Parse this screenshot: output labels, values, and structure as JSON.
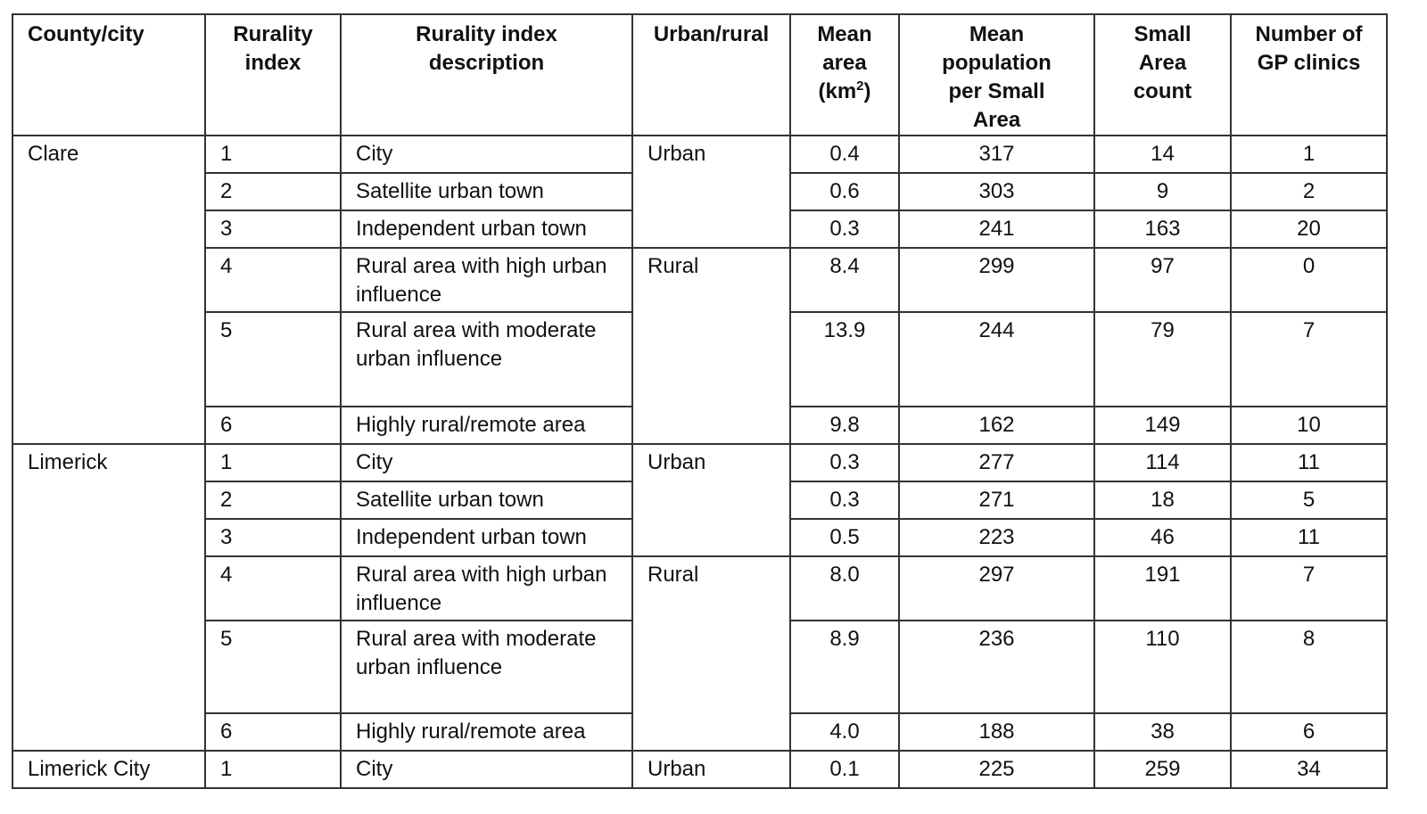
{
  "headers": {
    "county": "County/city",
    "index": "Rurality index",
    "description": "Rurality index description",
    "urban_rural": "Urban/rural",
    "mean_area": "Mean area (km",
    "mean_area_sup": "2",
    "mean_area_end": ")",
    "mean_population": "Mean population per Small Area",
    "small_area_count": "Small Area count",
    "gp_clinics": "Number of GP clinics"
  },
  "groups": [
    {
      "county": "Clare",
      "rows": [
        {
          "index": "1",
          "description": "City",
          "urban_rural": "Urban",
          "mean_area": "0.4",
          "mean_population": "317",
          "small_area_count": "14",
          "gp_clinics": "1"
        },
        {
          "index": "2",
          "description": "Satellite urban town",
          "mean_area": "0.6",
          "mean_population": "303",
          "small_area_count": "9",
          "gp_clinics": "2"
        },
        {
          "index": "3",
          "description": "Independent urban town",
          "mean_area": "0.3",
          "mean_population": "241",
          "small_area_count": "163",
          "gp_clinics": "20"
        },
        {
          "index": "4",
          "description": "Rural area with high urban influence",
          "urban_rural": "Rural",
          "mean_area": "8.4",
          "mean_population": "299",
          "small_area_count": "97",
          "gp_clinics": "0"
        },
        {
          "index": "5",
          "description": "Rural area with moderate urban influence",
          "mean_area": "13.9",
          "mean_population": "244",
          "small_area_count": "79",
          "gp_clinics": "7"
        },
        {
          "index": "6",
          "description": "Highly rural/remote area",
          "mean_area": "9.8",
          "mean_population": "162",
          "small_area_count": "149",
          "gp_clinics": "10"
        }
      ]
    },
    {
      "county": "Limerick",
      "rows": [
        {
          "index": "1",
          "description": "City",
          "urban_rural": "Urban",
          "mean_area": "0.3",
          "mean_population": "277",
          "small_area_count": "114",
          "gp_clinics": "11"
        },
        {
          "index": "2",
          "description": "Satellite urban town",
          "mean_area": "0.3",
          "mean_population": "271",
          "small_area_count": "18",
          "gp_clinics": "5"
        },
        {
          "index": "3",
          "description": "Independent urban town",
          "mean_area": "0.5",
          "mean_population": "223",
          "small_area_count": "46",
          "gp_clinics": "11"
        },
        {
          "index": "4",
          "description": "Rural area with high urban influence",
          "urban_rural": "Rural",
          "mean_area": "8.0",
          "mean_population": "297",
          "small_area_count": "191",
          "gp_clinics": "7"
        },
        {
          "index": "5",
          "description": "Rural area with moderate urban influence",
          "mean_area": "8.9",
          "mean_population": "236",
          "small_area_count": "110",
          "gp_clinics": "8"
        },
        {
          "index": "6",
          "description": "Highly rural/remote area",
          "mean_area": "4.0",
          "mean_population": "188",
          "small_area_count": "38",
          "gp_clinics": "6"
        }
      ]
    },
    {
      "county": "Limerick City",
      "rows": [
        {
          "index": "1",
          "description": "City",
          "urban_rural": "Urban",
          "mean_area": "0.1",
          "mean_population": "225",
          "small_area_count": "259",
          "gp_clinics": "34"
        }
      ]
    }
  ]
}
